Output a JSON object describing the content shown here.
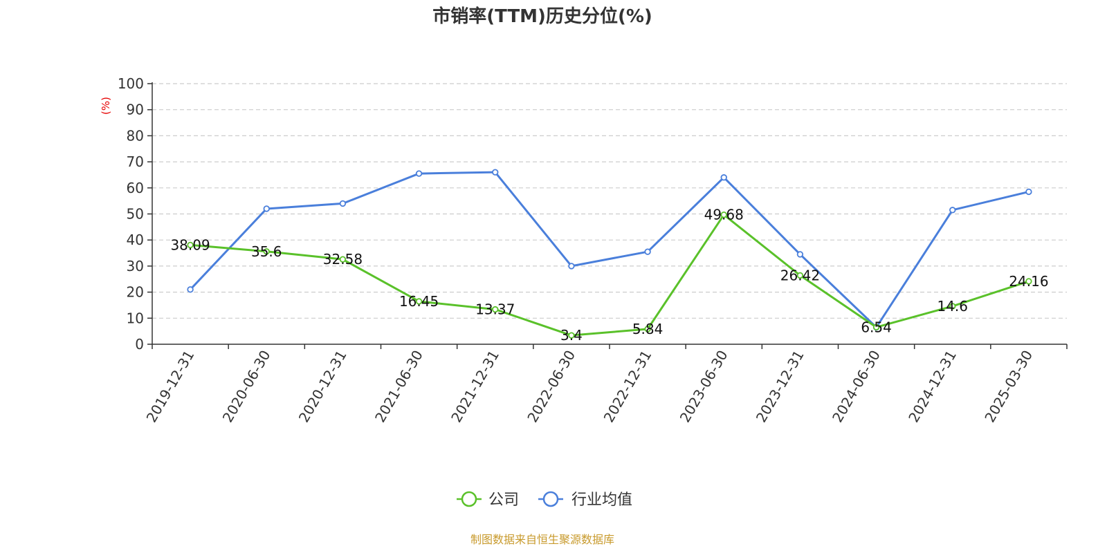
{
  "colors": {
    "series_company": "#5ac12a",
    "series_industry": "#4a7fdb",
    "axis": "#333333",
    "grid": "#cccccc",
    "unit_label": "#e60000",
    "source": "#c89a2c"
  },
  "chart_data": {
    "type": "line",
    "title": "市销率(TTM)历史分位(%)",
    "ylabel": "(%)",
    "xlabel": "",
    "ylim": [
      0,
      100
    ],
    "yticks": [
      0,
      10,
      20,
      30,
      40,
      50,
      60,
      70,
      80,
      90,
      100
    ],
    "grid": true,
    "legend_position": "bottom-center",
    "categories": [
      "2019-12-31",
      "2020-06-30",
      "2020-12-31",
      "2021-06-30",
      "2021-12-31",
      "2022-06-30",
      "2022-12-31",
      "2023-06-30",
      "2023-12-31",
      "2024-06-30",
      "2024-12-31",
      "2025-03-30"
    ],
    "series": [
      {
        "name": "公司",
        "color": "#5ac12a",
        "values": [
          38.09,
          35.6,
          32.58,
          16.45,
          13.37,
          3.4,
          5.84,
          49.68,
          26.42,
          6.54,
          14.6,
          24.16
        ],
        "labels": [
          "38.09",
          "35.6",
          "32.58",
          "16.45",
          "13.37",
          "3.4",
          "5.84",
          "49.68",
          "26.42",
          "6.54",
          "14.6",
          "24.16"
        ]
      },
      {
        "name": "行业均值",
        "color": "#4a7fdb",
        "values": [
          21,
          52,
          54,
          65.5,
          66,
          30,
          35.5,
          64,
          34.5,
          6.5,
          51.5,
          58.5
        ]
      }
    ]
  },
  "source_note": "制图数据来自恒生聚源数据库"
}
